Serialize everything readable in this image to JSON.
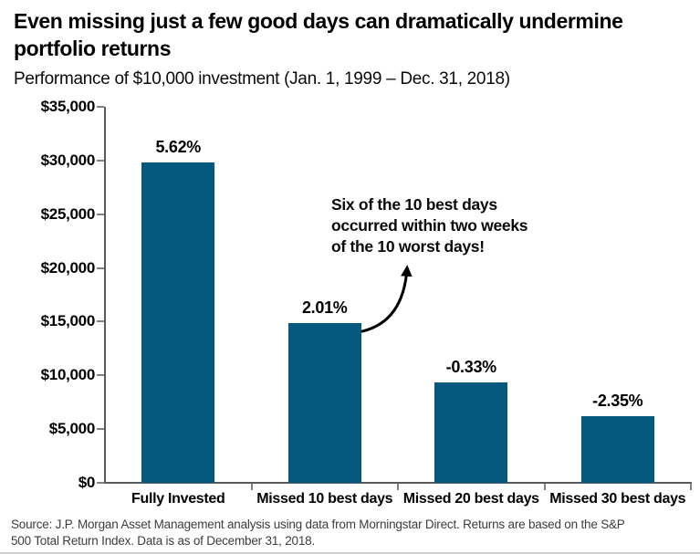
{
  "header": {
    "title_lines": [
      "Even missing just a few good days can dramatically undermine",
      "portfolio returns"
    ],
    "subtitle": "Performance of $10,000 investment (Jan. 1, 1999 – Dec. 31, 2018)"
  },
  "annotation": {
    "lines": [
      "Six of the 10 best days",
      "occurred within two weeks",
      "of the 10 worst days!"
    ]
  },
  "source": {
    "lines": [
      "Source: J.P. Morgan Asset Management analysis using data from Morningstar Direct. Returns are based on the S&P",
      "500 Total Return Index. Data is as of December 31, 2018."
    ]
  },
  "colors": {
    "bar": "#05597e",
    "axis": "#58595b",
    "tick": "#808184",
    "text": "#000000",
    "source_text": "#3d3d3d"
  },
  "chart_data": {
    "type": "bar",
    "title": "Even missing just a few good days can dramatically undermine portfolio returns",
    "subtitle": "Performance of $10,000 investment (Jan. 1, 1999 – Dec. 31, 2018)",
    "categories": [
      "Fully Invested",
      "Missed 10 best days",
      "Missed 20 best days",
      "Missed 30 best days"
    ],
    "values": [
      29845,
      14895,
      9359,
      6213
    ],
    "bar_labels": [
      "5.62%",
      "2.01%",
      "-0.33%",
      "-2.35%"
    ],
    "xlabel": "",
    "ylabel": "",
    "ylim": [
      0,
      35000
    ],
    "yticks": [
      0,
      5000,
      10000,
      15000,
      20000,
      25000,
      30000,
      35000
    ],
    "ytick_labels": [
      "$0",
      "$5,000",
      "$10,000",
      "$15,000",
      "$20,000",
      "$25,000",
      "$30,000",
      "$35,000"
    ],
    "grid": false,
    "legend": null,
    "annotation": "Six of the 10 best days occurred within two weeks of the 10 worst days!"
  }
}
